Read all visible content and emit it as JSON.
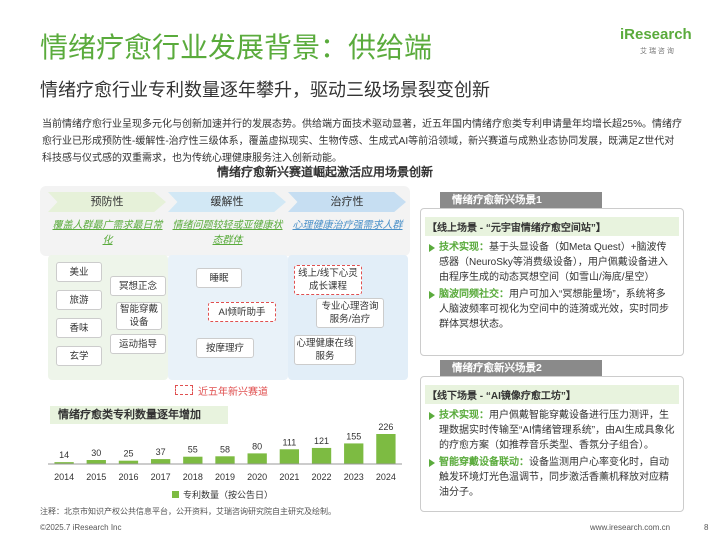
{
  "header": {
    "title": "情绪疗愈行业发展背景：供给端",
    "logo": "iResearch",
    "logo_sub": "艾 瑞 咨 询",
    "subtitle": "情绪疗愈行业专利数量逐年攀升，驱动三级场景裂变创新"
  },
  "intro": "当前情绪疗愈行业呈现多元化与创新加速并行的发展态势。供给端方面技术驱动显著，近五年国内情绪疗愈类专利申请量年均增长超25%。情绪疗愈行业已形成预防性-缓解性-治疗性三级体系，覆盖虚拟现实、生物传感、生成式AI等前沿领域，新兴赛道与成熟业态协同发展，既满足Z世代对科技感与仪式感的双重需求，也为传统心理健康服务注入创新动能。",
  "section_title": "情绪疗愈新兴赛道崛起激活应用场景创新",
  "tiers": [
    {
      "name": "预防性",
      "desc": "覆盖人群最广需求最日常化",
      "items": [
        "美业",
        "旅游",
        "香味",
        "玄学",
        "冥想正念",
        "智能穿戴设备",
        "运动指导"
      ]
    },
    {
      "name": "缓解性",
      "desc": "情绪问题较轻或亚健康状态群体",
      "items": [
        "睡眠",
        "AI倾听助手",
        "按摩理疗"
      ]
    },
    {
      "name": "治疗性",
      "desc": "心理健康治疗强需求人群",
      "items": [
        "线上/线下心灵成长课程",
        "专业心理咨询服务/治疗",
        "心理健康在线服务"
      ]
    }
  ],
  "legend_emerging": "近五年新兴赛道",
  "chart_data": {
    "type": "bar",
    "title": "情绪疗愈类专利数量逐年增加",
    "categories": [
      "2014",
      "2015",
      "2016",
      "2017",
      "2018",
      "2019",
      "2020",
      "2021",
      "2022",
      "2023",
      "2024"
    ],
    "series": [
      {
        "name": "专利数量（按公告日）",
        "color": "#7dbb42",
        "values": [
          14,
          30,
          25,
          37,
          55,
          58,
          80,
          111,
          121,
          155,
          226
        ]
      }
    ]
  },
  "source": "注释：北京市知识产权公共信息平台，公开资料，艾瑞咨询研究院自主研究及绘制。",
  "scenes": [
    {
      "tab": "情绪疗愈新兴场景1",
      "title": "【线上场景 - “元宇宙情绪疗愈空间站”】",
      "bullets": [
        {
          "label": "技术实现：",
          "text": "基于头显设备（如Meta Quest）+脑波传感器（NeuroSky等消费级设备），用户佩戴设备进入由程序生成的动态冥想空间（如雪山/海底/星空）"
        },
        {
          "label": "脑波同频社交：",
          "text": "用户可加入“冥想能量场”，系统将多人脑波频率可视化为空间中的涟漪或光效，实时同步群体冥想状态。"
        }
      ]
    },
    {
      "tab": "情绪疗愈新兴场景2",
      "title": "【线下场景 - “AI镜像疗愈工坊”】",
      "bullets": [
        {
          "label": "技术实现：",
          "text": "用户佩戴智能穿戴设备进行压力测评，生理数据实时传输至“AI情绪管理系统”，由AI生成具象化的疗愈方案（如推荐音乐类型、香氛分子组合）。"
        },
        {
          "label": "智能穿戴设备联动：",
          "text": "设备监测用户心率变化时，自动触发环境灯光色温调节，同步激活香薰机释放对应精油分子。"
        }
      ]
    }
  ],
  "footer": {
    "copyright": "©2025.7 iResearch Inc",
    "url": "www.iresearch.com.cn",
    "page": "8"
  }
}
